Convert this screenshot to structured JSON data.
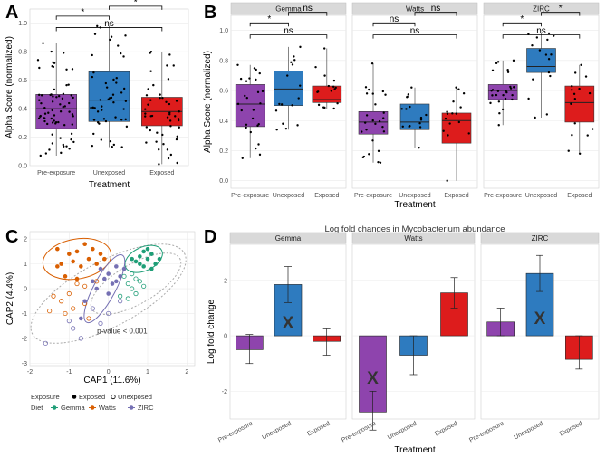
{
  "panels": {
    "A": "A",
    "B": "B",
    "C": "C",
    "D": "D"
  },
  "colors": {
    "pre": "#8e44ad",
    "unexposed": "#2e7bbf",
    "exposed": "#dd1c1c",
    "gemma": "#1f9e77",
    "watts": "#d95f02",
    "zirc": "#7570b3",
    "strip": "#d9d9d9"
  },
  "chart_data": [
    {
      "id": "A",
      "type": "box",
      "xlabel": "Treatment",
      "ylabel": "Alpha Score (normalized)",
      "categories": [
        "Pre-exposure",
        "Unexposed",
        "Exposed"
      ],
      "ylim": [
        0,
        1.1
      ],
      "yticks": [
        "0.0",
        "0.2",
        "0.4",
        "0.6",
        "0.8",
        "1.0"
      ],
      "boxes": [
        {
          "category": "Pre-exposure",
          "q1": 0.26,
          "median": 0.4,
          "q3": 0.5,
          "min": 0.07,
          "max": 0.86
        },
        {
          "category": "Unexposed",
          "q1": 0.31,
          "median": 0.46,
          "q3": 0.66,
          "min": 0.13,
          "max": 0.98
        },
        {
          "category": "Exposed",
          "q1": 0.28,
          "median": 0.38,
          "q3": 0.48,
          "min": 0.01,
          "max": 0.8
        }
      ],
      "significance": [
        {
          "from": "Pre-exposure",
          "to": "Exposed",
          "label": "ns"
        },
        {
          "from": "Pre-exposure",
          "to": "Unexposed",
          "label": "*"
        },
        {
          "from": "Unexposed",
          "to": "Exposed",
          "label": "*"
        }
      ]
    },
    {
      "id": "B",
      "type": "box",
      "facets": [
        "Gemma",
        "Watts",
        "ZIRC"
      ],
      "xlabel": "Treatment",
      "ylabel": "Alpha Score (normalized)",
      "categories": [
        "Pre-exposure",
        "Unexposed",
        "Exposed"
      ],
      "ylim": [
        0,
        1.1
      ],
      "yticks": [
        "0.0",
        "0.2",
        "0.4",
        "0.6",
        "0.8",
        "1.0"
      ],
      "series": [
        {
          "name": "Gemma",
          "boxes": [
            {
              "q1": 0.36,
              "median": 0.51,
              "q3": 0.64,
              "min": 0.15,
              "max": 0.77
            },
            {
              "q1": 0.5,
              "median": 0.61,
              "q3": 0.73,
              "min": 0.34,
              "max": 0.89
            },
            {
              "q1": 0.52,
              "median": 0.54,
              "q3": 0.63,
              "min": 0.48,
              "max": 0.88
            }
          ],
          "significance": [
            {
              "from": "Pre-exposure",
              "to": "Exposed",
              "label": "ns"
            },
            {
              "from": "Pre-exposure",
              "to": "Unexposed",
              "label": "*"
            },
            {
              "from": "Unexposed",
              "to": "Exposed",
              "label": "ns"
            }
          ]
        },
        {
          "name": "Watts",
          "boxes": [
            {
              "q1": 0.31,
              "median": 0.39,
              "q3": 0.46,
              "min": 0.12,
              "max": 0.78
            },
            {
              "q1": 0.34,
              "median": 0.39,
              "q3": 0.51,
              "min": 0.22,
              "max": 0.62
            },
            {
              "q1": 0.25,
              "median": 0.4,
              "q3": 0.45,
              "min": 0.0,
              "max": 0.62
            }
          ],
          "significance": [
            {
              "from": "Pre-exposure",
              "to": "Exposed",
              "label": "ns"
            },
            {
              "from": "Pre-exposure",
              "to": "Unexposed",
              "label": "ns"
            },
            {
              "from": "Unexposed",
              "to": "Exposed",
              "label": "ns"
            }
          ]
        },
        {
          "name": "ZIRC",
          "boxes": [
            {
              "q1": 0.54,
              "median": 0.6,
              "q3": 0.64,
              "min": 0.37,
              "max": 0.8
            },
            {
              "q1": 0.72,
              "median": 0.76,
              "q3": 0.88,
              "min": 0.42,
              "max": 0.98
            },
            {
              "q1": 0.39,
              "median": 0.52,
              "q3": 0.63,
              "min": 0.18,
              "max": 0.77
            }
          ],
          "significance": [
            {
              "from": "Pre-exposure",
              "to": "Exposed",
              "label": "ns"
            },
            {
              "from": "Pre-exposure",
              "to": "Unexposed",
              "label": "*"
            },
            {
              "from": "Unexposed",
              "to": "Exposed",
              "label": "*"
            }
          ]
        }
      ]
    },
    {
      "id": "C",
      "type": "scatter",
      "xlabel": "CAP1 (11.6%)",
      "ylabel": "CAP2 (4.4%)",
      "xlim": [
        -2,
        2.2
      ],
      "ylim": [
        -3.1,
        2.3
      ],
      "xticks": [
        "-2",
        "-1",
        "0",
        "1",
        "2"
      ],
      "yticks": [
        "2",
        "1",
        "0",
        "-1",
        "-2",
        "-3"
      ],
      "annotation": "p-value < 0.001",
      "legend": {
        "exposure_title": "Exposure",
        "exposure": [
          "Exposed",
          "Unexposed"
        ],
        "diet_title": "Diet",
        "diet": [
          "Gemma",
          "Watts",
          "ZIRC"
        ]
      },
      "points": {
        "Gemma": {
          "exposed": [
            [
              0.8,
              1.3
            ],
            [
              0.9,
              1.5
            ],
            [
              1.0,
              1.2
            ],
            [
              1.1,
              1.4
            ],
            [
              0.7,
              1.1
            ],
            [
              1.2,
              1.0
            ],
            [
              0.9,
              0.9
            ],
            [
              1.0,
              1.6
            ],
            [
              0.8,
              1.0
            ],
            [
              1.3,
              1.2
            ],
            [
              1.1,
              0.8
            ],
            [
              0.6,
              1.2
            ]
          ],
          "unexposed": [
            [
              0.5,
              0.2
            ],
            [
              0.6,
              0.0
            ],
            [
              0.7,
              -0.2
            ],
            [
              0.4,
              0.5
            ],
            [
              0.8,
              0.3
            ],
            [
              0.3,
              -0.3
            ],
            [
              0.6,
              0.6
            ],
            [
              0.5,
              -0.4
            ],
            [
              0.9,
              0.1
            ],
            [
              0.7,
              0.4
            ]
          ]
        },
        "Watts": {
          "exposed": [
            [
              -1.3,
              1.6
            ],
            [
              -1.0,
              1.4
            ],
            [
              -0.8,
              1.5
            ],
            [
              -0.6,
              1.8
            ],
            [
              -0.4,
              1.6
            ],
            [
              -0.2,
              1.4
            ],
            [
              -1.2,
              1.0
            ],
            [
              -0.9,
              1.1
            ],
            [
              -0.7,
              0.9
            ],
            [
              -0.5,
              1.2
            ],
            [
              -1.1,
              0.5
            ],
            [
              -0.8,
              0.4
            ],
            [
              -0.3,
              1.0
            ],
            [
              -0.1,
              1.2
            ],
            [
              -1.3,
              0.9
            ]
          ],
          "unexposed": [
            [
              -1.4,
              -0.3
            ],
            [
              -1.2,
              -0.5
            ],
            [
              -1.0,
              -0.2
            ],
            [
              -0.8,
              0.2
            ],
            [
              -0.6,
              0.1
            ],
            [
              -0.9,
              -0.8
            ],
            [
              -1.1,
              -1.0
            ],
            [
              -0.6,
              -0.6
            ],
            [
              -0.3,
              0.3
            ],
            [
              -0.5,
              -1.2
            ],
            [
              -1.5,
              -0.9
            ]
          ]
        },
        "ZIRC": {
          "exposed": [
            [
              -0.2,
              0.8
            ],
            [
              0.0,
              0.6
            ],
            [
              0.2,
              0.9
            ],
            [
              -0.1,
              0.4
            ],
            [
              0.3,
              0.5
            ],
            [
              -0.4,
              0.3
            ],
            [
              0.1,
              0.2
            ],
            [
              -0.3,
              0.0
            ],
            [
              0.4,
              0.8
            ],
            [
              -0.6,
              -0.5
            ],
            [
              -0.7,
              -1.2
            ],
            [
              0.0,
              -0.2
            ],
            [
              0.2,
              0.3
            ]
          ],
          "unexposed": [
            [
              -0.4,
              -0.8
            ],
            [
              0.0,
              -1.0
            ],
            [
              -0.9,
              -1.6
            ],
            [
              -1.6,
              -2.2
            ],
            [
              -0.7,
              -2.0
            ],
            [
              -1.0,
              -1.3
            ],
            [
              0.3,
              -0.5
            ],
            [
              -0.2,
              -1.4
            ]
          ]
        }
      }
    },
    {
      "id": "D",
      "type": "bar",
      "facets": [
        "Gemma",
        "Watts",
        "ZIRC"
      ],
      "title": "Log fold changes in Mycobacterium abundance",
      "xlabel": "Treatment",
      "ylabel": "Log fold change",
      "categories": [
        "Pre-exposure",
        "Unexposed",
        "Exposed"
      ],
      "ylim": [
        -3.0,
        3.3
      ],
      "yticks": [
        "2",
        "0",
        "-2"
      ],
      "series": [
        {
          "name": "Gemma",
          "values": [
            -0.5,
            1.85,
            -0.2
          ],
          "err_low": [
            -1.0,
            1.2,
            -0.7
          ],
          "err_high": [
            0.05,
            2.5,
            0.25
          ],
          "marker": "X",
          "marker_index": 1,
          "marker_y": 0.5
        },
        {
          "name": "Watts",
          "values": [
            -2.75,
            -0.7,
            1.55
          ],
          "err_low": [
            -3.4,
            -1.4,
            1.0
          ],
          "err_high": [
            -2.0,
            0.0,
            2.1
          ],
          "marker": "X",
          "marker_index": 0,
          "marker_y": -1.5
        },
        {
          "name": "ZIRC",
          "values": [
            0.5,
            2.25,
            -0.85
          ],
          "err_low": [
            0.0,
            1.6,
            -1.2
          ],
          "err_high": [
            1.0,
            2.9,
            0.0
          ],
          "marker": "X",
          "marker_index": 1,
          "marker_y": 0.65
        }
      ]
    }
  ]
}
